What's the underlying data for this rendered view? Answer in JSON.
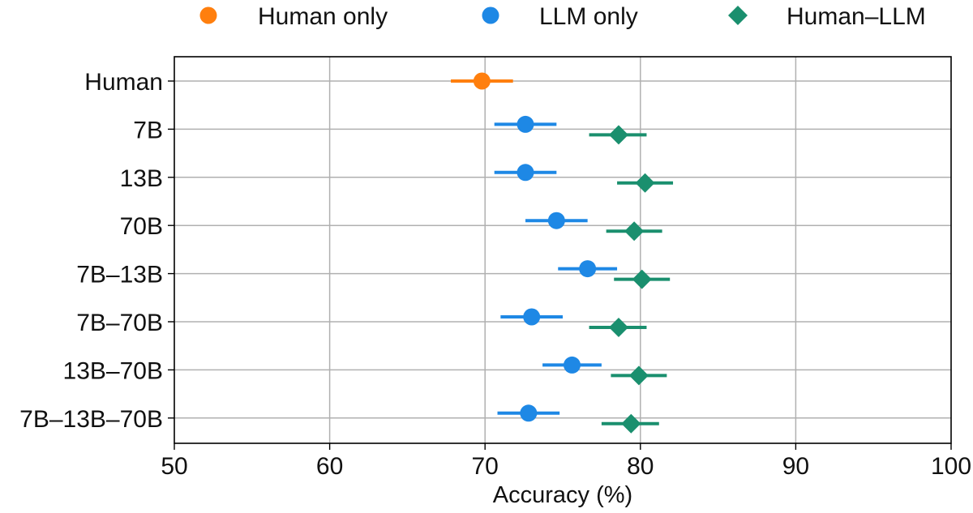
{
  "chart_data": {
    "type": "scatter",
    "title": "",
    "xlabel": "Accuracy (%)",
    "ylabel": "",
    "xlim": [
      50,
      100
    ],
    "xticks": [
      "50",
      "60",
      "70",
      "80",
      "90",
      "100"
    ],
    "xtick_values": [
      50,
      60,
      70,
      80,
      90,
      100
    ],
    "grid": true,
    "legend_placement": "top-outside",
    "categories": [
      "Human",
      "7B",
      "13B",
      "70B",
      "7B–13B",
      "7B–70B",
      "13B–70B",
      "7B–13B–70B"
    ],
    "series": [
      {
        "name": "Human only",
        "marker": "circle",
        "color": "#ff7f0e",
        "points": [
          {
            "category": "Human",
            "value": 69.8,
            "lo": 67.8,
            "hi": 71.8
          }
        ]
      },
      {
        "name": "LLM only",
        "marker": "circle",
        "color": "#1e88e5",
        "points": [
          {
            "category": "7B",
            "value": 72.6,
            "lo": 70.6,
            "hi": 74.6
          },
          {
            "category": "13B",
            "value": 72.6,
            "lo": 70.6,
            "hi": 74.6
          },
          {
            "category": "70B",
            "value": 74.6,
            "lo": 72.6,
            "hi": 76.6
          },
          {
            "category": "7B–13B",
            "value": 76.6,
            "lo": 74.7,
            "hi": 78.5
          },
          {
            "category": "7B–70B",
            "value": 73.0,
            "lo": 71.0,
            "hi": 75.0
          },
          {
            "category": "13B–70B",
            "value": 75.6,
            "lo": 73.7,
            "hi": 77.5
          },
          {
            "category": "7B–13B–70B",
            "value": 72.8,
            "lo": 70.8,
            "hi": 74.8
          }
        ]
      },
      {
        "name": "Human–LLM",
        "marker": "diamond",
        "color": "#1a8f6e",
        "points": [
          {
            "category": "7B",
            "value": 78.6,
            "lo": 76.7,
            "hi": 80.4
          },
          {
            "category": "13B",
            "value": 80.3,
            "lo": 78.5,
            "hi": 82.1
          },
          {
            "category": "70B",
            "value": 79.6,
            "lo": 77.8,
            "hi": 81.4
          },
          {
            "category": "7B–13B",
            "value": 80.1,
            "lo": 78.3,
            "hi": 81.9
          },
          {
            "category": "7B–70B",
            "value": 78.6,
            "lo": 76.7,
            "hi": 80.4
          },
          {
            "category": "13B–70B",
            "value": 79.9,
            "lo": 78.1,
            "hi": 81.7
          },
          {
            "category": "7B–13B–70B",
            "value": 79.4,
            "lo": 77.5,
            "hi": 81.2
          }
        ]
      }
    ]
  }
}
